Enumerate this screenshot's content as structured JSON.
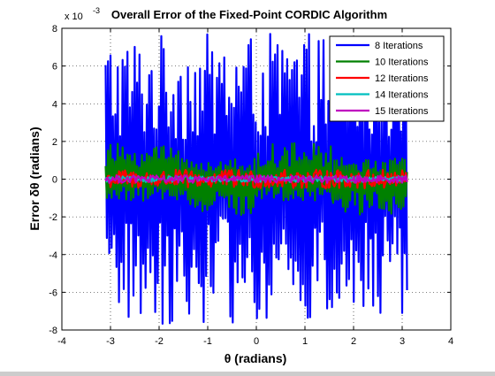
{
  "window": {
    "background": "#cccccc"
  },
  "chart_data": {
    "type": "line",
    "title": "Overall Error of the Fixed-Point CORDIC Algorithm",
    "xlabel": "θ (radians)",
    "ylabel": "Error   δθ (radians)",
    "y_exponent_label": "x 10",
    "y_exponent_power": "-3",
    "xlim": [
      -4,
      4
    ],
    "ylim": [
      -8,
      8
    ],
    "xticks": [
      -4,
      -3,
      -2,
      -1,
      0,
      1,
      2,
      3,
      4
    ],
    "yticks": [
      -8,
      -6,
      -4,
      -2,
      0,
      2,
      4,
      6,
      8
    ],
    "x_tick_labels": [
      "-4",
      "-3",
      "-2",
      "-1",
      "0",
      "1",
      "2",
      "3",
      "4"
    ],
    "y_tick_labels": [
      "-8",
      "-6",
      "-4",
      "-2",
      "0",
      "2",
      "4",
      "6",
      "8"
    ],
    "grid": "dotted",
    "legend_position": "top-right",
    "x_range": [
      -3.1,
      3.1
    ],
    "series": [
      {
        "name": "8 Iterations",
        "color": "#0000ff",
        "approx_amplitude_e3": 7.7,
        "samples": 250
      },
      {
        "name": "10 Iterations",
        "color": "#008000",
        "approx_amplitude_e3": 1.9,
        "samples": 250
      },
      {
        "name": "12 Iterations",
        "color": "#ff0000",
        "approx_amplitude_e3": 0.5,
        "samples": 250
      },
      {
        "name": "14 Iterations",
        "color": "#00bfbf",
        "approx_amplitude_e3": 0.15,
        "samples": 250
      },
      {
        "name": "15 Iterations",
        "color": "#bf00bf",
        "approx_amplitude_e3": 0.2,
        "samples": 250
      }
    ]
  }
}
